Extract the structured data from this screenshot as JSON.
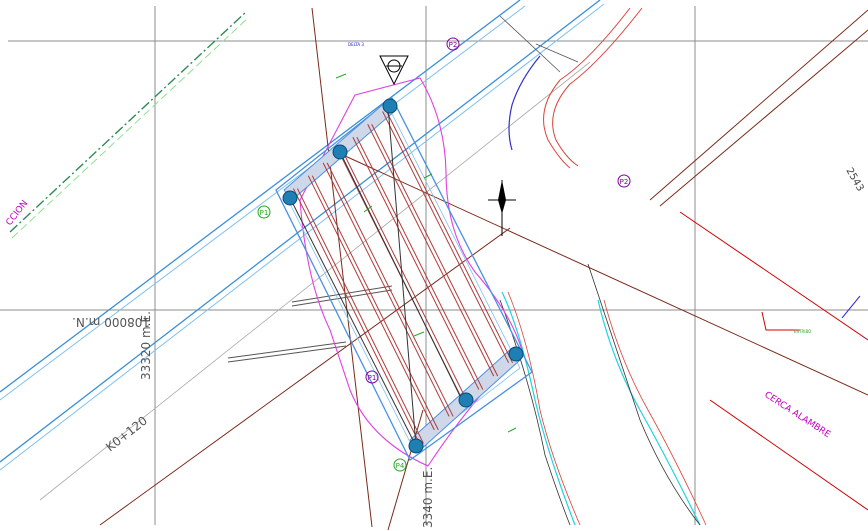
{
  "drawing": {
    "grid_labels": {
      "northing": "108000 m.N.",
      "easting_left": "33320 m.E.",
      "easting_bottom": "3340 m.E."
    },
    "station_label": "K0+120",
    "elevation_labels": {
      "upper_right": "2543"
    },
    "boundary_labels": {
      "fence": "CERCA ALAMBRE",
      "left_edge": "CCION"
    },
    "small_labels": {
      "top_marker": "DELTA 3",
      "callout_green": "ESTRIBO"
    },
    "circle_markers": [
      "P2",
      "P2",
      "P1",
      "P1",
      "P4"
    ],
    "colors": {
      "grid": "#8c8c8c",
      "road_edge": "#3a8fd8",
      "road_edge_light": "#7fc0f0",
      "centerline_dash": "#2e8b57",
      "structure": "#b03a3a",
      "structure_outline": "#4a90e2",
      "footprint": "#e040e0",
      "pile": "#1e7fb5",
      "contour": "#7a2a1a",
      "creek_cyan": "#1fd3e0",
      "creek_red": "#d9443a",
      "boundary": "#d00000",
      "label_magenta": "#c000c0"
    }
  }
}
